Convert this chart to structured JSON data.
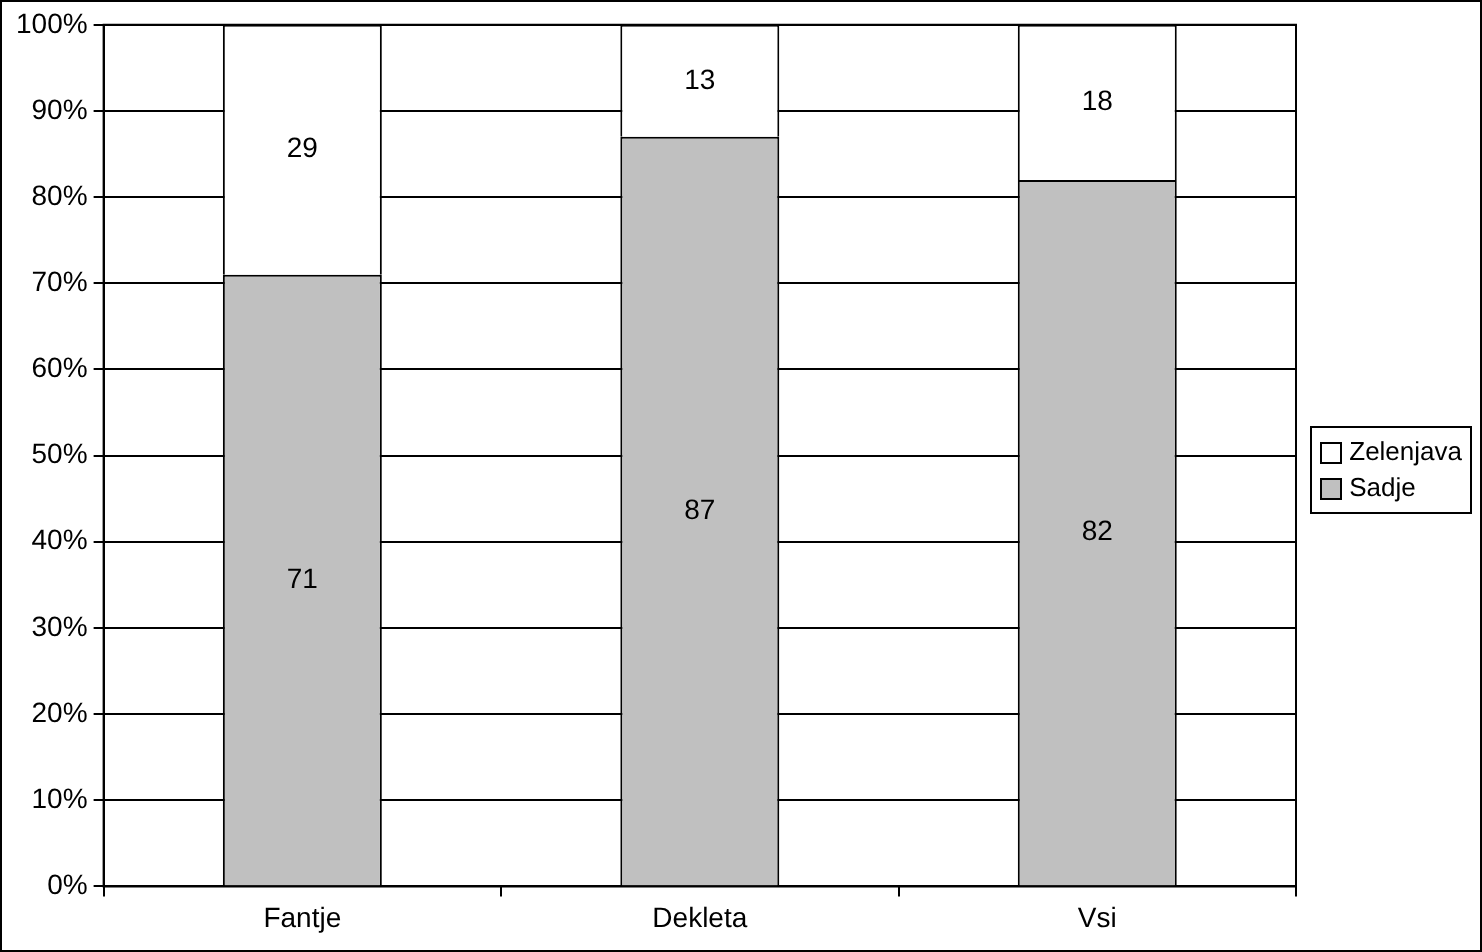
{
  "chart_data": {
    "type": "bar",
    "stacked": true,
    "categories": [
      "Fantje",
      "Dekleta",
      "Vsi"
    ],
    "series": [
      {
        "name": "Sadje",
        "color": "#c0c0c0",
        "values": [
          71,
          87,
          82
        ]
      },
      {
        "name": "Zelenjava",
        "color": "#ffffff",
        "values": [
          29,
          13,
          18
        ]
      }
    ],
    "ylim": [
      0,
      100
    ],
    "yticks": [
      {
        "value": 0,
        "label": "0%"
      },
      {
        "value": 10,
        "label": "10%"
      },
      {
        "value": 20,
        "label": "20%"
      },
      {
        "value": 30,
        "label": "30%"
      },
      {
        "value": 40,
        "label": "40%"
      },
      {
        "value": 50,
        "label": "50%"
      },
      {
        "value": 60,
        "label": "60%"
      },
      {
        "value": 70,
        "label": "70%"
      },
      {
        "value": 80,
        "label": "80%"
      },
      {
        "value": 90,
        "label": "90%"
      },
      {
        "value": 100,
        "label": "100%"
      }
    ],
    "grid": "y",
    "legend": "right",
    "data_labels": true
  }
}
